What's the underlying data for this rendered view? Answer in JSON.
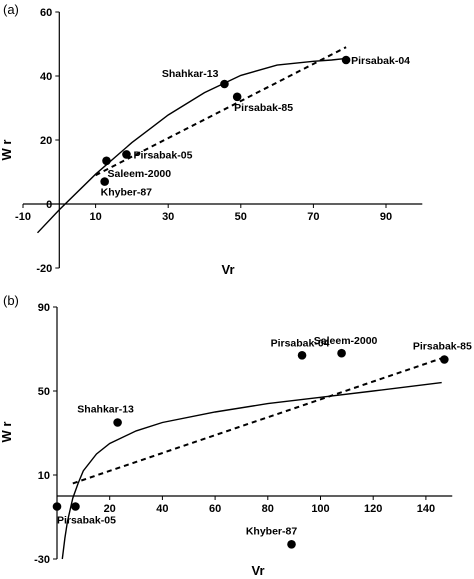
{
  "chart_data": [
    {
      "type": "scatter",
      "panel_label": "(a)",
      "xlabel": "Vr",
      "ylabel": "W r",
      "xlim": [
        -10,
        100
      ],
      "ylim": [
        -20,
        60
      ],
      "xticks": [
        -10,
        10,
        30,
        50,
        70,
        90
      ],
      "yticks": [
        -20,
        0,
        20,
        40,
        60
      ],
      "points": [
        {
          "name": "Pirsabak-04",
          "x": 79,
          "y": 45
        },
        {
          "name": "Shahkar-13",
          "x": 45.5,
          "y": 37.5
        },
        {
          "name": "Pirsabak-85",
          "x": 49,
          "y": 33.5
        },
        {
          "name": "Pirsabak-05",
          "x": 18.5,
          "y": 15.5
        },
        {
          "name": "Saleem-2000",
          "x": 13,
          "y": 13.5
        },
        {
          "name": "Khyber-87",
          "x": 12.5,
          "y": 7
        }
      ],
      "fits": [
        {
          "style": "solid",
          "x": [
            -6,
            0,
            10,
            20,
            30,
            40,
            50,
            60,
            70,
            75,
            79
          ],
          "y": [
            -9,
            -1.8,
            9.3,
            19.2,
            27.8,
            34.8,
            40.2,
            43.4,
            44.6,
            45,
            45.5
          ]
        },
        {
          "style": "dashed",
          "x": [
            10,
            79
          ],
          "y": [
            9,
            49
          ]
        }
      ]
    },
    {
      "type": "scatter",
      "panel_label": "(b)",
      "xlabel": "Vr",
      "ylabel": "W r",
      "xlim": [
        0,
        150
      ],
      "ylim": [
        -30,
        90
      ],
      "xticks": [
        20,
        40,
        60,
        80,
        100,
        120,
        140
      ],
      "yticks": [
        -30,
        10,
        50,
        90
      ],
      "points": [
        {
          "name": "Pirsabak-85",
          "x": 147,
          "y": 65
        },
        {
          "name": "Saleem-2000",
          "x": 108,
          "y": 68
        },
        {
          "name": "Pirsabak-04",
          "x": 93,
          "y": 67
        },
        {
          "name": "Shahkar-13",
          "x": 23,
          "y": 35
        },
        {
          "name": "Pirsabak-05",
          "x": 7,
          "y": -5
        },
        {
          "name": "Khyber-87",
          "x": 89,
          "y": -23
        },
        {
          "name": "",
          "x": 0,
          "y": -5
        }
      ],
      "fits": [
        {
          "style": "solid",
          "x": [
            2,
            3,
            4,
            6,
            8,
            10,
            15,
            20,
            30,
            40,
            60,
            80,
            100,
            120,
            146
          ],
          "y": [
            -30,
            -20,
            -12,
            -1,
            6,
            12,
            20,
            25,
            31,
            35,
            40,
            44,
            47,
            50,
            54
          ]
        },
        {
          "style": "dashed",
          "x": [
            6,
            147
          ],
          "y": [
            6,
            66
          ]
        }
      ]
    }
  ]
}
